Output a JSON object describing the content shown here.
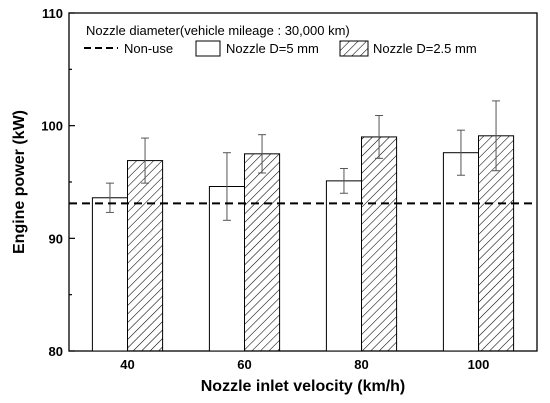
{
  "chart_data": {
    "type": "bar",
    "title": "",
    "xlabel": "Nozzle inlet velocity (km/h)",
    "ylabel": "Engine power (kW)",
    "categories": [
      "40",
      "60",
      "80",
      "100"
    ],
    "ylim": [
      80,
      110
    ],
    "yticks": [
      80,
      90,
      100,
      110
    ],
    "grid": false,
    "legend": {
      "heading": "Nozzle diameter(vehicle mileage : 30,000 km)",
      "placement": "top-left"
    },
    "reference_line": {
      "name": "Non-use",
      "value": 93.1,
      "style": "dashed"
    },
    "series": [
      {
        "name": "Nozzle D=5 mm",
        "pattern": "open",
        "values": [
          93.6,
          94.6,
          95.1,
          97.6
        ],
        "error": [
          1.3,
          3.0,
          1.1,
          2.0
        ]
      },
      {
        "name": "Nozzle D=2.5 mm",
        "pattern": "hatched",
        "values": [
          96.9,
          97.5,
          99.0,
          99.1
        ],
        "error": [
          2.0,
          1.7,
          1.9,
          3.1
        ]
      }
    ]
  }
}
